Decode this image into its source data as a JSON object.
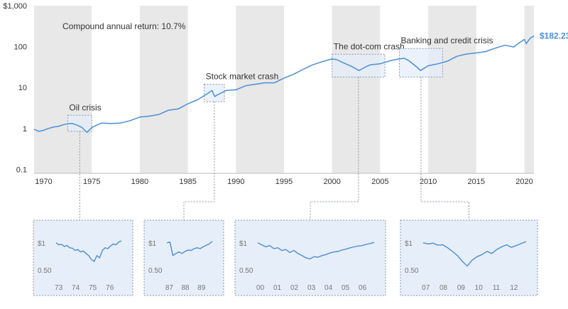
{
  "colors": {
    "line": "#4a8fd6",
    "end_label": "#4a8fd6",
    "band": "#e8e8e8",
    "zoom_fill": "#e6eef9",
    "zoom_border": "#8a96a8",
    "text": "#333333",
    "muted": "#777777"
  },
  "chart_data": [
    {
      "type": "line",
      "y_scale": "log",
      "xlim": [
        1969,
        2021
      ],
      "ylim": [
        0.08,
        1000
      ],
      "grid": false,
      "x_ticks": [
        1970,
        1975,
        1980,
        1985,
        1990,
        1995,
        2000,
        2005,
        2010,
        2015,
        2020
      ],
      "y_ticks": [
        {
          "value": 0.1,
          "label": "0.1"
        },
        {
          "value": 1,
          "label": "1"
        },
        {
          "value": 10,
          "label": "10"
        },
        {
          "value": 100,
          "label": "100"
        },
        {
          "value": 1000,
          "label": "$1,000"
        }
      ],
      "shaded_year_bands": [
        [
          1969,
          1975
        ],
        [
          1980,
          1985
        ],
        [
          1990,
          1995
        ],
        [
          2000,
          2005
        ],
        [
          2010,
          2015
        ],
        [
          2020,
          2021
        ]
      ],
      "annotation": "Compound annual return: 10.7%",
      "end_value_label": "$182.23",
      "series": [
        {
          "points": [
            [
              1969.0,
              0.95
            ],
            [
              1969.5,
              0.85
            ],
            [
              1970.0,
              0.9
            ],
            [
              1970.5,
              1.0
            ],
            [
              1971.0,
              1.08
            ],
            [
              1971.5,
              1.12
            ],
            [
              1972.0,
              1.22
            ],
            [
              1972.5,
              1.3
            ],
            [
              1973.0,
              1.32
            ],
            [
              1973.5,
              1.2
            ],
            [
              1974.0,
              1.05
            ],
            [
              1974.5,
              0.8
            ],
            [
              1975.0,
              1.05
            ],
            [
              1975.5,
              1.2
            ],
            [
              1976.0,
              1.35
            ],
            [
              1977.0,
              1.32
            ],
            [
              1978.0,
              1.35
            ],
            [
              1979.0,
              1.55
            ],
            [
              1980.0,
              1.9
            ],
            [
              1981.0,
              2.0
            ],
            [
              1982.0,
              2.2
            ],
            [
              1983.0,
              2.8
            ],
            [
              1984.0,
              3.0
            ],
            [
              1985.0,
              4.0
            ],
            [
              1986.0,
              5.0
            ],
            [
              1987.0,
              7.0
            ],
            [
              1987.5,
              8.5
            ],
            [
              1987.8,
              6.0
            ],
            [
              1988.0,
              6.5
            ],
            [
              1989.0,
              8.5
            ],
            [
              1990.0,
              8.8
            ],
            [
              1991.0,
              11.0
            ],
            [
              1992.0,
              12.0
            ],
            [
              1993.0,
              13.0
            ],
            [
              1994.0,
              13.0
            ],
            [
              1995.0,
              17.0
            ],
            [
              1996.0,
              21.0
            ],
            [
              1997.0,
              28.0
            ],
            [
              1998.0,
              36.0
            ],
            [
              1999.0,
              43.0
            ],
            [
              2000.0,
              50.0
            ],
            [
              2000.5,
              48.0
            ],
            [
              2001.0,
              42.0
            ],
            [
              2002.0,
              33.0
            ],
            [
              2002.8,
              26.0
            ],
            [
              2003.5,
              32.0
            ],
            [
              2004.0,
              36.0
            ],
            [
              2005.0,
              38.0
            ],
            [
              2006.0,
              45.0
            ],
            [
              2007.0,
              50.0
            ],
            [
              2007.5,
              52.0
            ],
            [
              2008.0,
              45.0
            ],
            [
              2008.8,
              32.0
            ],
            [
              2009.2,
              26.0
            ],
            [
              2010.0,
              34.0
            ],
            [
              2011.0,
              38.0
            ],
            [
              2012.0,
              44.0
            ],
            [
              2013.0,
              58.0
            ],
            [
              2014.0,
              66.0
            ],
            [
              2015.0,
              70.0
            ],
            [
              2016.0,
              76.0
            ],
            [
              2017.0,
              92.0
            ],
            [
              2018.0,
              108.0
            ],
            [
              2018.9,
              98.0
            ],
            [
              2019.5,
              125.0
            ],
            [
              2020.0,
              150.0
            ],
            [
              2020.2,
              118.0
            ],
            [
              2020.6,
              160.0
            ],
            [
              2021.0,
              182.23
            ]
          ]
        }
      ],
      "callouts": [
        {
          "label": "Oil crisis",
          "x_range": [
            1972.5,
            1975.0
          ],
          "y_range": [
            0.85,
            2.1
          ]
        },
        {
          "label": "Stock market crash",
          "x_range": [
            1986.7,
            1988.8
          ],
          "y_range": [
            4.5,
            12.0
          ]
        },
        {
          "label": "The dot-com crash",
          "x_range": [
            2000.0,
            2005.5
          ],
          "y_range": [
            18.0,
            65.0
          ]
        },
        {
          "label": "Banking and credit crisis",
          "x_range": [
            2007.0,
            2011.5
          ],
          "y_range": [
            18.0,
            90.0
          ]
        }
      ]
    },
    {
      "type": "line",
      "y_scale": "log",
      "ylim": [
        0.4,
        1.6
      ],
      "y_ticks": [
        {
          "value": 1,
          "label": "$1"
        },
        {
          "value": 0.5,
          "label": "0.50"
        }
      ],
      "x_ticks": [
        "73",
        "74",
        "75",
        "76"
      ],
      "series": [
        {
          "values": [
            1.0,
            0.95,
            0.96,
            0.91,
            0.93,
            0.88,
            0.87,
            0.82,
            0.84,
            0.79,
            0.81,
            0.76,
            0.72,
            0.65,
            0.62,
            0.72,
            0.68,
            0.82,
            0.88,
            0.86,
            0.92,
            0.97,
            0.95,
            1.02,
            1.05
          ]
        }
      ]
    },
    {
      "type": "line",
      "y_scale": "log",
      "ylim": [
        0.4,
        1.6
      ],
      "y_ticks": [
        {
          "value": 1,
          "label": "$1"
        },
        {
          "value": 0.5,
          "label": "0.50"
        }
      ],
      "x_ticks": [
        "87",
        "88",
        "89"
      ],
      "series": [
        {
          "values": [
            1.0,
            1.02,
            0.72,
            0.76,
            0.79,
            0.76,
            0.8,
            0.83,
            0.82,
            0.86,
            0.88,
            0.86,
            0.9,
            0.94,
            0.97,
            1.04
          ]
        }
      ]
    },
    {
      "type": "line",
      "y_scale": "log",
      "ylim": [
        0.4,
        1.6
      ],
      "y_ticks": [
        {
          "value": 1,
          "label": "$1"
        },
        {
          "value": 0.5,
          "label": "0.50"
        }
      ],
      "x_ticks": [
        "00",
        "01",
        "02",
        "03",
        "04",
        "05",
        "06"
      ],
      "series": [
        {
          "values": [
            1.0,
            0.95,
            0.9,
            0.93,
            0.86,
            0.88,
            0.82,
            0.84,
            0.78,
            0.82,
            0.76,
            0.72,
            0.68,
            0.66,
            0.7,
            0.69,
            0.72,
            0.74,
            0.77,
            0.79,
            0.8,
            0.83,
            0.85,
            0.88,
            0.9,
            0.92,
            0.93,
            0.96,
            0.98,
            1.01
          ]
        }
      ]
    },
    {
      "type": "line",
      "y_scale": "log",
      "ylim": [
        0.4,
        1.6
      ],
      "y_ticks": [
        {
          "value": 1,
          "label": "$1"
        },
        {
          "value": 0.5,
          "label": "0.50"
        }
      ],
      "x_ticks": [
        "07",
        "08",
        "09",
        "10",
        "11",
        "12"
      ],
      "series": [
        {
          "values": [
            1.0,
            0.97,
            0.99,
            0.94,
            0.95,
            0.88,
            0.8,
            0.72,
            0.62,
            0.55,
            0.64,
            0.7,
            0.74,
            0.8,
            0.76,
            0.84,
            0.9,
            0.95,
            0.89,
            0.93,
            0.98,
            1.03
          ]
        }
      ]
    }
  ]
}
